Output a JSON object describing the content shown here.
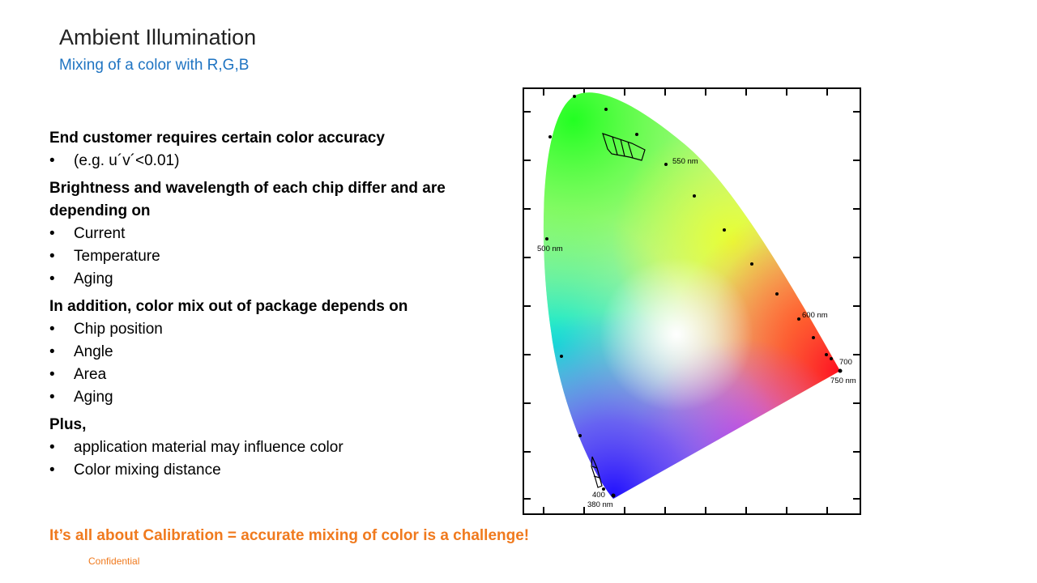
{
  "slide": {
    "title": "Ambient Illumination",
    "subtitle": "Mixing of a color with R,G,B",
    "sections": [
      {
        "heading": "End customer requires certain color accuracy",
        "bullets": [
          "(e.g. u´v´<0.01)"
        ]
      },
      {
        "heading": "Brightness and wavelength of each chip differ and are depending on",
        "bullets": [
          "Current",
          "Temperature",
          "Aging"
        ]
      },
      {
        "heading": "In addition, color mix out of package depends on",
        "bullets": [
          "Chip position",
          "Angle",
          "Area",
          "Aging"
        ]
      },
      {
        "heading": "Plus,",
        "bullets": [
          "application material may influence color",
          "Color mixing distance"
        ]
      }
    ],
    "bullet_glyph": "•",
    "tagline": "It’s all about Calibration = accurate mixing of color is a challenge!",
    "footer": "Confidential",
    "accent_color": "#f07a1e",
    "subtitle_color": "#1f74c2"
  },
  "diagram": {
    "wavelength_labels": {
      "nm550": "550 nm",
      "nm500": "500 nm",
      "nm600": "600 nm",
      "nm700": "700",
      "nm750": "750 nm",
      "nm400": "400",
      "nm380": "380 nm"
    }
  }
}
